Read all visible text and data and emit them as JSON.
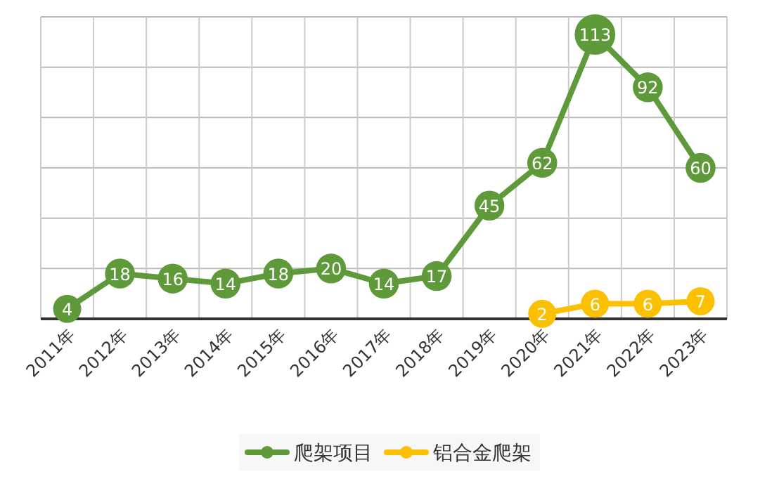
{
  "chart_data": {
    "type": "line",
    "categories": [
      "2011年",
      "2012年",
      "2013年",
      "2014年",
      "2015年",
      "2016年",
      "2017年",
      "2018年",
      "2019年",
      "2020年",
      "2021年",
      "2022年",
      "2023年"
    ],
    "series": [
      {
        "name": "爬架项目",
        "color": "#5f9a3a",
        "values": [
          4,
          18,
          16,
          14,
          18,
          20,
          14,
          17,
          45,
          62,
          113,
          92,
          60
        ]
      },
      {
        "name": "铝合金爬架",
        "color": "#fbc000",
        "values": [
          null,
          null,
          null,
          null,
          null,
          null,
          null,
          null,
          null,
          2,
          6,
          6,
          7
        ]
      }
    ],
    "ylim": [
      0,
      120
    ],
    "yticks": [
      {
        "value": 0,
        "label": null
      },
      {
        "value": 20,
        "label": null
      },
      {
        "value": 40,
        "label": null
      },
      {
        "value": 60,
        "label": null
      },
      {
        "value": 80,
        "label": null
      },
      {
        "value": 100,
        "label": null
      },
      {
        "value": 120,
        "label": null
      }
    ],
    "tick_labels": "x",
    "grid": true,
    "legend": "bottom",
    "marker": "circle",
    "data_labels": true,
    "line_style": "solid"
  }
}
